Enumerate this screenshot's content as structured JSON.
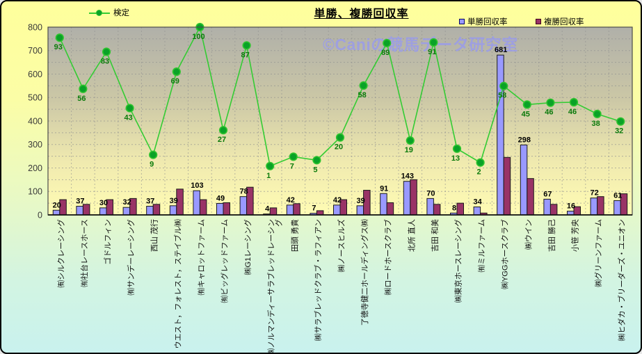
{
  "header": {
    "title": "単勝、複勝回収率",
    "legend_kentei": "検定",
    "legend_tansho": "単勝回収率",
    "legend_fukusho": "複勝回収率"
  },
  "watermark": "©Caniの競馬データ研究室",
  "colors": {
    "tansho_bar": "#9999FF",
    "fukusho_bar": "#993366",
    "kentei_line": "#33CC33",
    "kentei_dot_fill": "#0AA227",
    "kentei_label": "#0A7A0A",
    "bar_label": "#000000",
    "axis_label": "#3A3A3A",
    "watermark": "#9A9CEA",
    "plot_top": "#B0B0A9",
    "plot_bottom": "#FFFCB4",
    "bg_top": "#FFFF9C",
    "bg_bottom": "#C9F2EE"
  },
  "chart_data": {
    "type": "bar",
    "subtype": "combo: grouped bars + line on hidden secondary axis",
    "title": "単勝、複勝回収率",
    "xlabel": "",
    "ylabel": "",
    "ylim": [
      0,
      800
    ],
    "y_ticks": [
      0,
      100,
      200,
      300,
      400,
      500,
      600,
      700,
      800
    ],
    "grid": "dashed horizontal gridlines every 50; dashed vertical gridline between each category",
    "legend_position": "top",
    "watermark": "©Caniの競馬データ研究室",
    "categories": [
      "㈲シルクレーシング",
      "㈲社台レースホース",
      "ゴドルフィン",
      "㈲サンデーレーシング",
      "西山 茂行",
      "ウエスト，フォレスト，ステイブル㈱",
      "㈲キャロットファーム",
      "㈲ビッグレッドファーム",
      "㈱G1レーシング",
      "㈱ノルマンディーサラブレッドレーシング",
      "田頭 勇貴",
      "㈱サラブレッドクラブ・ラフィアン",
      "㈱ノースヒルズ",
      "了徳寺健二ホールディングス㈱",
      "㈱ロードホースクラブ",
      "北所 直人",
      "吉田 和美",
      "㈱東京ホースレーシング",
      "㈲ミルファーム",
      "㈱YGGホースクラブ",
      "㈱ウイン",
      "吉田 勝己",
      "小笹 芳央",
      "㈱グリーンファーム",
      "㈱ヒダカ・ブリーダーズ・ユニオン"
    ],
    "series": [
      {
        "name": "単勝回収率",
        "type": "bar",
        "color": "#9999FF",
        "data_labels": true,
        "values": [
          20,
          37,
          30,
          32,
          37,
          39,
          103,
          49,
          78,
          4,
          42,
          7,
          42,
          39,
          91,
          143,
          70,
          8,
          34,
          681,
          298,
          67,
          16,
          72,
          61
        ]
      },
      {
        "name": "複勝回収率",
        "type": "bar",
        "color": "#993366",
        "data_labels": false,
        "values_estimated_from_bar_heights": true,
        "values": [
          65,
          45,
          65,
          70,
          45,
          110,
          65,
          52,
          118,
          30,
          48,
          18,
          65,
          105,
          52,
          150,
          45,
          50,
          8,
          245,
          155,
          45,
          35,
          78,
          90
        ]
      },
      {
        "name": "検定",
        "type": "line",
        "color": "#33CC33",
        "data_labels": true,
        "point_labels": [
          93,
          56,
          83,
          43,
          9,
          69,
          100,
          27,
          87,
          1,
          7,
          5,
          20,
          58,
          89,
          19,
          91,
          13,
          2,
          58,
          45,
          46,
          46,
          38,
          32
        ],
        "plotted_y_primary_axis_units_estimated": [
          755,
          537,
          695,
          455,
          256,
          610,
          800,
          361,
          722,
          208,
          248,
          233,
          330,
          551,
          732,
          317,
          735,
          282,
          223,
          549,
          470,
          478,
          480,
          430,
          398
        ]
      }
    ]
  }
}
